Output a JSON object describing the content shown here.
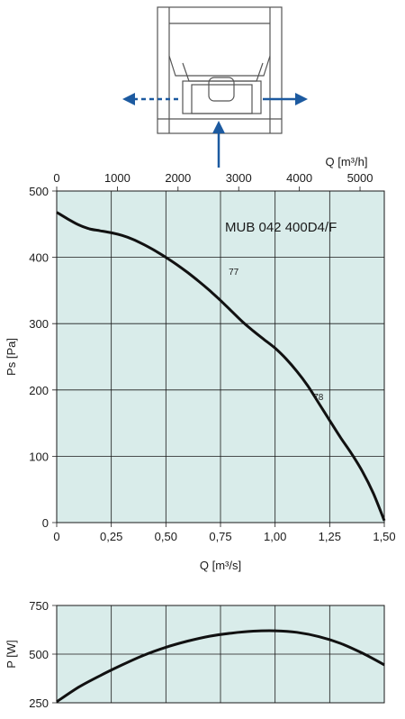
{
  "colors": {
    "plot_bg": "#d9ecea",
    "grid": "#1a1a1a",
    "curve": "#111111",
    "arrow": "#1c5aa0",
    "device_line": "#555555"
  },
  "device_icon": "fan-unit-schematic-icon",
  "chart_data": [
    {
      "type": "line",
      "title": "MUB 042 400D4/F",
      "xlabel": "Q [m³/s]",
      "ylabel": "Ps [Pa]",
      "x2label": "Q [m³/h]",
      "xlim": [
        0,
        1.5
      ],
      "ylim": [
        0,
        500
      ],
      "x_ticks": [
        0,
        0.25,
        0.5,
        0.75,
        1.0,
        1.25,
        1.5
      ],
      "x_tick_labels": [
        "0",
        "0,25",
        "0,50",
        "0,75",
        "1,00",
        "1,25",
        "1,50"
      ],
      "y_ticks": [
        0,
        100,
        200,
        300,
        400,
        500
      ],
      "y_tick_labels": [
        "0",
        "100",
        "200",
        "300",
        "400",
        "500"
      ],
      "x2_ticks": [
        0,
        1000,
        2000,
        3000,
        4000,
        5000
      ],
      "x2_tick_labels": [
        "0",
        "1000",
        "2000",
        "3000",
        "4000",
        "5000"
      ],
      "grid": true,
      "series": [
        {
          "x": [
            0,
            0.05,
            0.1,
            0.15,
            0.2,
            0.25,
            0.3,
            0.35,
            0.4,
            0.45,
            0.5,
            0.55,
            0.6,
            0.65,
            0.7,
            0.75,
            0.8,
            0.85,
            0.9,
            0.95,
            1.0,
            1.05,
            1.1,
            1.15,
            1.2,
            1.25,
            1.3,
            1.35,
            1.4,
            1.45,
            1.5
          ],
          "y": [
            468,
            458,
            449,
            443,
            440,
            437,
            433,
            427,
            419,
            410,
            400,
            389,
            377,
            364,
            350,
            335,
            319,
            303,
            289,
            276,
            263,
            247,
            228,
            206,
            180,
            154,
            128,
            104,
            77,
            44,
            3
          ]
        }
      ],
      "annotations": [
        {
          "text": "77",
          "x": 0.8,
          "y": 360
        },
        {
          "text": "78",
          "x": 1.2,
          "y": 205
        }
      ]
    },
    {
      "type": "line",
      "xlabel": "",
      "ylabel": "P [W]",
      "xlim": [
        0,
        1.5
      ],
      "ylim": [
        250,
        750
      ],
      "y_ticks": [
        250,
        500,
        750
      ],
      "y_tick_labels": [
        "250",
        "500",
        "750"
      ],
      "x_ticks": [
        0,
        0.25,
        0.5,
        0.75,
        1.0,
        1.25,
        1.5
      ],
      "grid": true,
      "series": [
        {
          "x": [
            0,
            0.1,
            0.2,
            0.3,
            0.4,
            0.5,
            0.6,
            0.7,
            0.8,
            0.9,
            1.0,
            1.1,
            1.2,
            1.3,
            1.4,
            1.5
          ],
          "y": [
            255,
            330,
            390,
            445,
            495,
            535,
            567,
            592,
            608,
            618,
            620,
            612,
            590,
            555,
            505,
            445
          ]
        }
      ]
    }
  ]
}
